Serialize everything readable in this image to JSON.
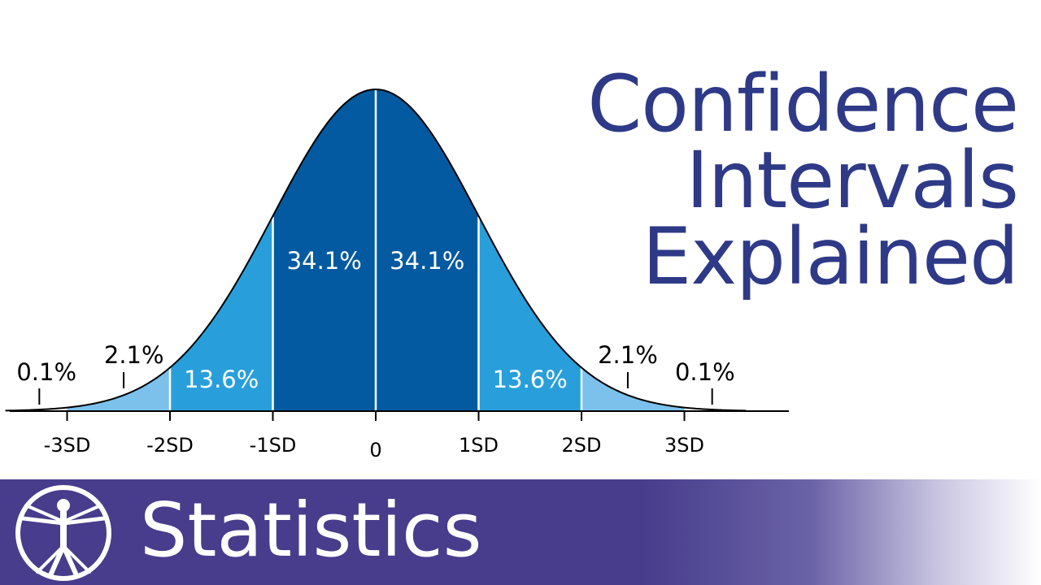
{
  "title": {
    "line1": "Confidence",
    "line2": "Intervals",
    "line3": "Explained"
  },
  "banner": {
    "label": "Statistics",
    "logo_icon": "vitruvian-man-icon"
  },
  "colors": {
    "title": "#2e3a87",
    "banner": "#473d8c",
    "band_1sd": "#045aa0",
    "band_2sd": "#289fda",
    "band_3sd": "#7cc1ec"
  },
  "chart_data": {
    "type": "area",
    "distribution": "normal",
    "x_range": [
      -3.6,
      3.6
    ],
    "ticks": [
      {
        "value": -3,
        "label": "-3SD"
      },
      {
        "value": -2,
        "label": "-2SD"
      },
      {
        "value": -1,
        "label": "-1SD"
      },
      {
        "value": 0,
        "label": "0"
      },
      {
        "value": 1,
        "label": "1SD"
      },
      {
        "value": 2,
        "label": "2SD"
      },
      {
        "value": 3,
        "label": "3SD"
      }
    ],
    "bands": [
      {
        "from": -3,
        "to": -2,
        "percent": "2.1%",
        "shade": "band_3sd"
      },
      {
        "from": -2,
        "to": -1,
        "percent": "13.6%",
        "shade": "band_2sd"
      },
      {
        "from": -1,
        "to": 0,
        "percent": "34.1%",
        "shade": "band_1sd"
      },
      {
        "from": 0,
        "to": 1,
        "percent": "34.1%",
        "shade": "band_1sd"
      },
      {
        "from": 1,
        "to": 2,
        "percent": "13.6%",
        "shade": "band_2sd"
      },
      {
        "from": 2,
        "to": 3,
        "percent": "2.1%",
        "shade": "band_3sd"
      }
    ],
    "tails": [
      {
        "side": "left",
        "percent": "0.1%"
      },
      {
        "side": "right",
        "percent": "0.1%"
      }
    ]
  }
}
